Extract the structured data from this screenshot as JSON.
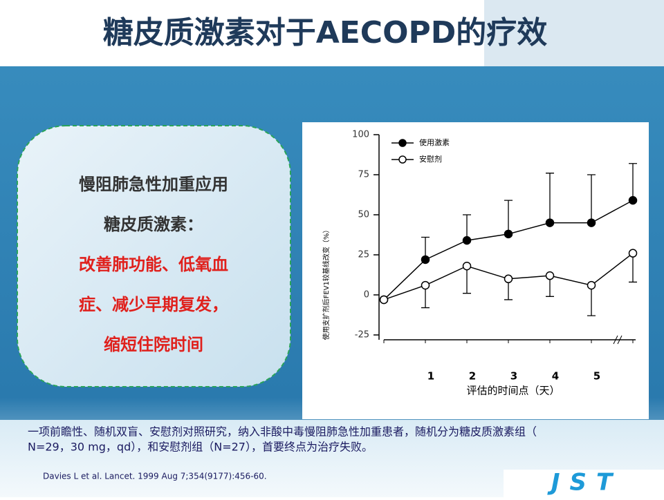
{
  "title": "糖皮质激素对于AECOPD的疗效",
  "panel": {
    "lines": [
      "慢阻肺急性加重应用",
      "糖皮质激素："
    ],
    "highlight_lines": [
      "改善肺功能、低氧血",
      "症、减少早期复发，",
      "缩短住院时间"
    ]
  },
  "footer": {
    "lines": [
      "一项前瞻性、随机双盲、安慰剂对照研究，纳入非酸中毒慢阻肺急性加重患者，随机分为糖皮质激素组（",
      "N=29，30 mg，qd），和安慰剂组（N=27），首要终点为治疗失败。"
    ],
    "citation": "Davies L et al. Lancet. 1999 Aug 7;354(9177):456-60."
  },
  "logo": "JST",
  "chart_data": {
    "type": "line",
    "y_label": "使用支扩剂后FEV1较基线改变（%）",
    "x_label": "评估的时间点（天）",
    "categories": [
      null,
      "1",
      "2",
      "3",
      "4",
      "5",
      null
    ],
    "series": [
      {
        "name": "使用激素",
        "color": "#000000",
        "marker": "filled",
        "error_direction": "up",
        "values": [
          -3,
          22,
          34,
          38,
          45,
          45,
          59
        ],
        "errors": [
          0,
          14,
          16,
          21,
          31,
          30,
          23
        ]
      },
      {
        "name": "安慰剂",
        "color": "#000000",
        "marker": "open",
        "error_direction": "down",
        "values": [
          -3,
          6,
          18,
          10,
          12,
          6,
          26
        ],
        "errors": [
          0,
          14,
          17,
          13,
          13,
          19,
          18
        ]
      }
    ],
    "ylim": [
      -28,
      100
    ],
    "yticks": [
      -25,
      0,
      25,
      50,
      75,
      100
    ],
    "legend": "top-left"
  }
}
